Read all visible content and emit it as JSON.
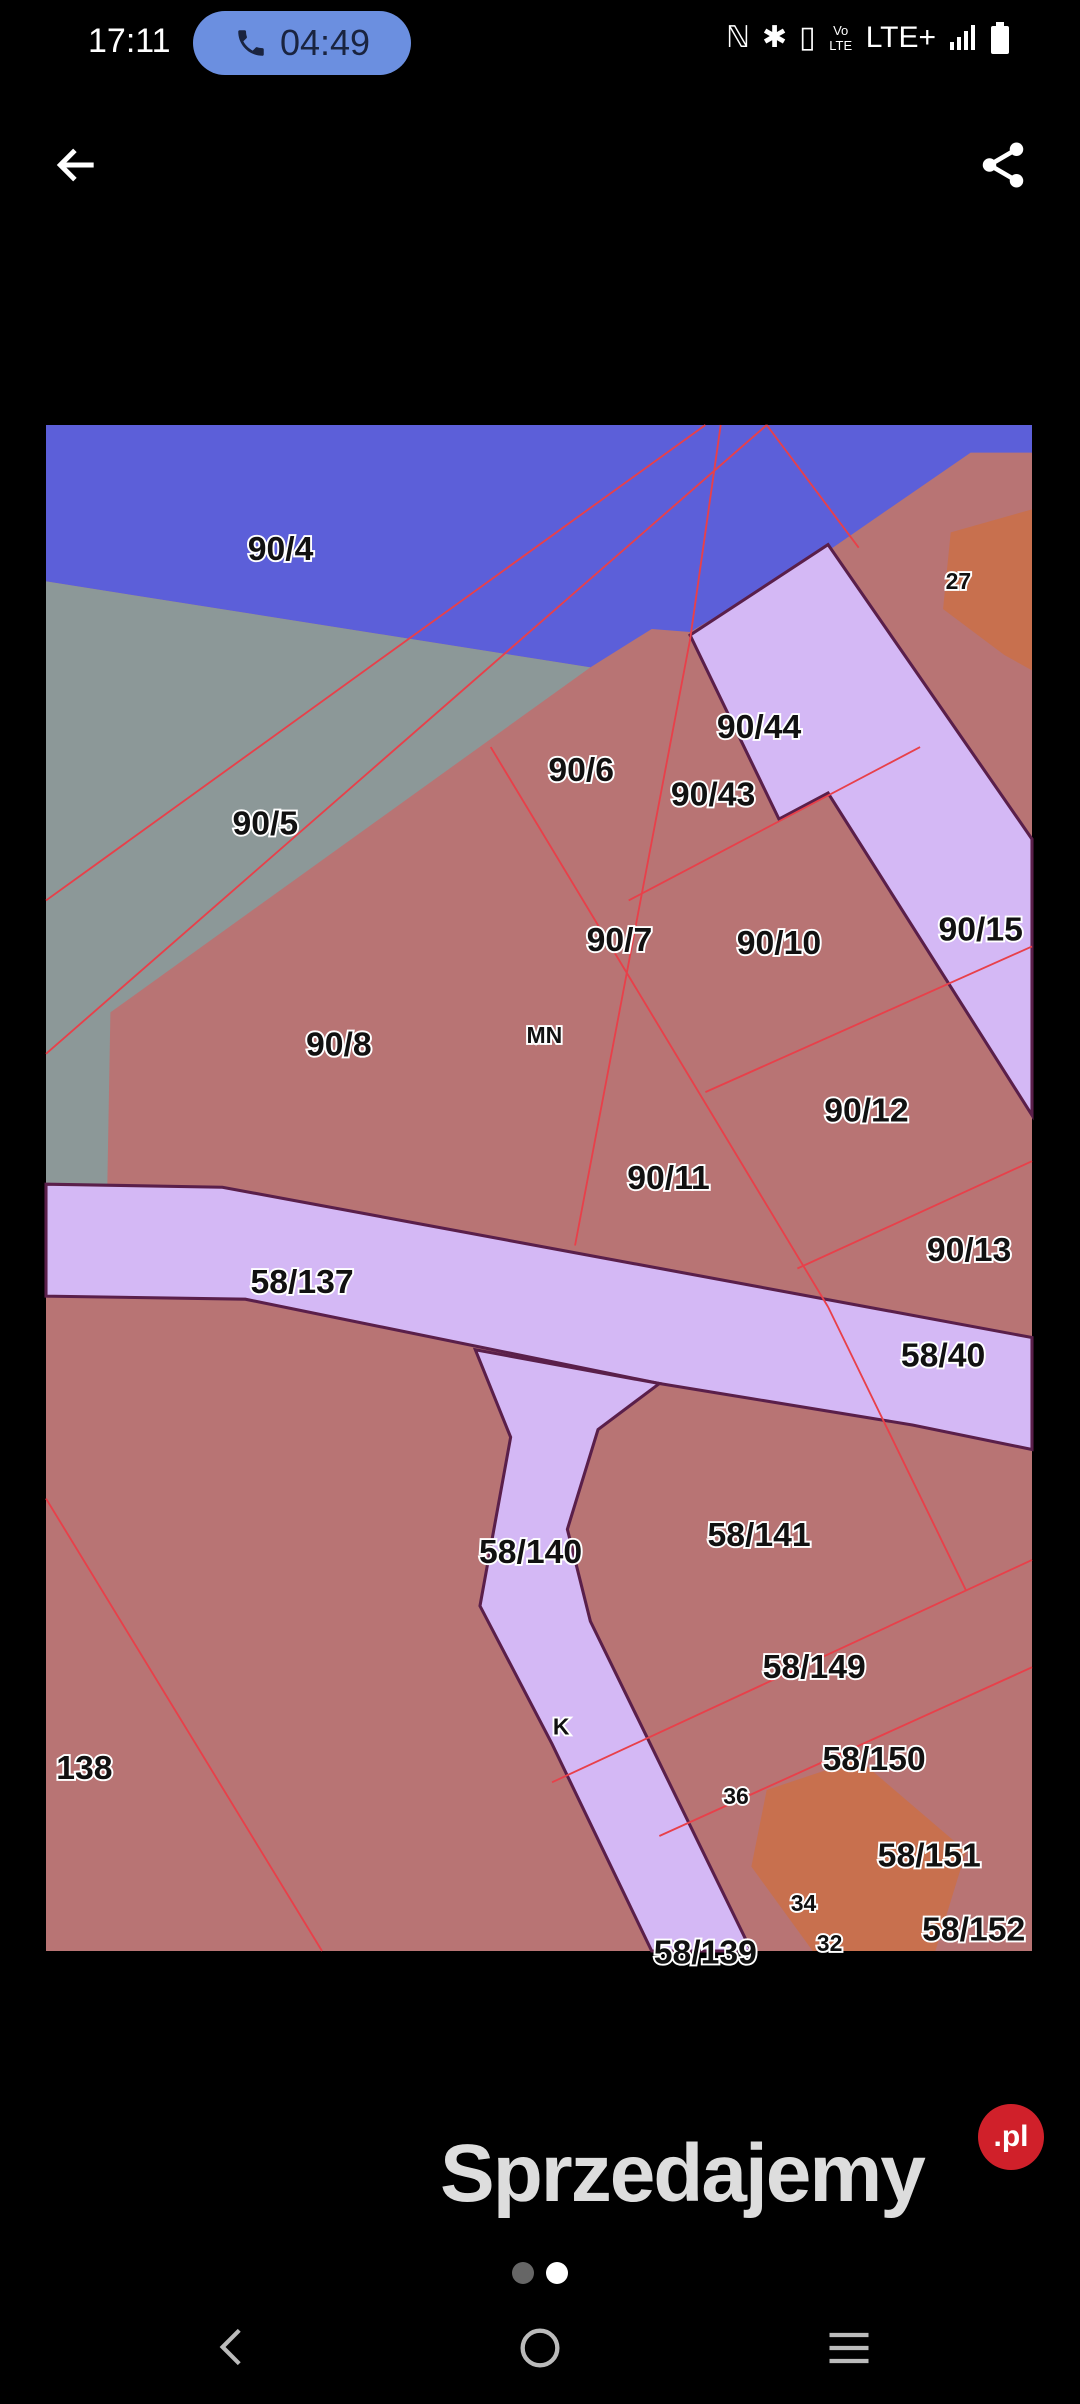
{
  "status_bar": {
    "time": "17:11",
    "call_duration": "04:49",
    "network": "LTE+",
    "volte": "Vo LTE"
  },
  "header": {
    "back_icon": "arrow-left",
    "share_icon": "share"
  },
  "map": {
    "colors": {
      "residential": "#b87474",
      "road": "#d4b8f5",
      "water": "#5c5fd9",
      "grey": "#8c9898",
      "building": "#c8704e",
      "lines": "#e8404a"
    },
    "labels": [
      "90/4",
      "90/5",
      "90/6",
      "90/44",
      "90/43",
      "90/7",
      "90/10",
      "90/15",
      "90/8",
      "MN",
      "90/12",
      "90/11",
      "90/13",
      "58/137",
      "58/40",
      "58/141",
      "58/140",
      "58/149",
      "K",
      "58/150",
      "36",
      "58/151",
      "34",
      "58/152",
      "138",
      "27",
      "58/139",
      "32"
    ]
  },
  "logo": {
    "text": "Sprzedajemy",
    "badge": ".pl"
  },
  "pager": {
    "total": 2,
    "active": 2
  },
  "nav_bar": {
    "back": "back",
    "home": "home",
    "recents": "recents"
  }
}
